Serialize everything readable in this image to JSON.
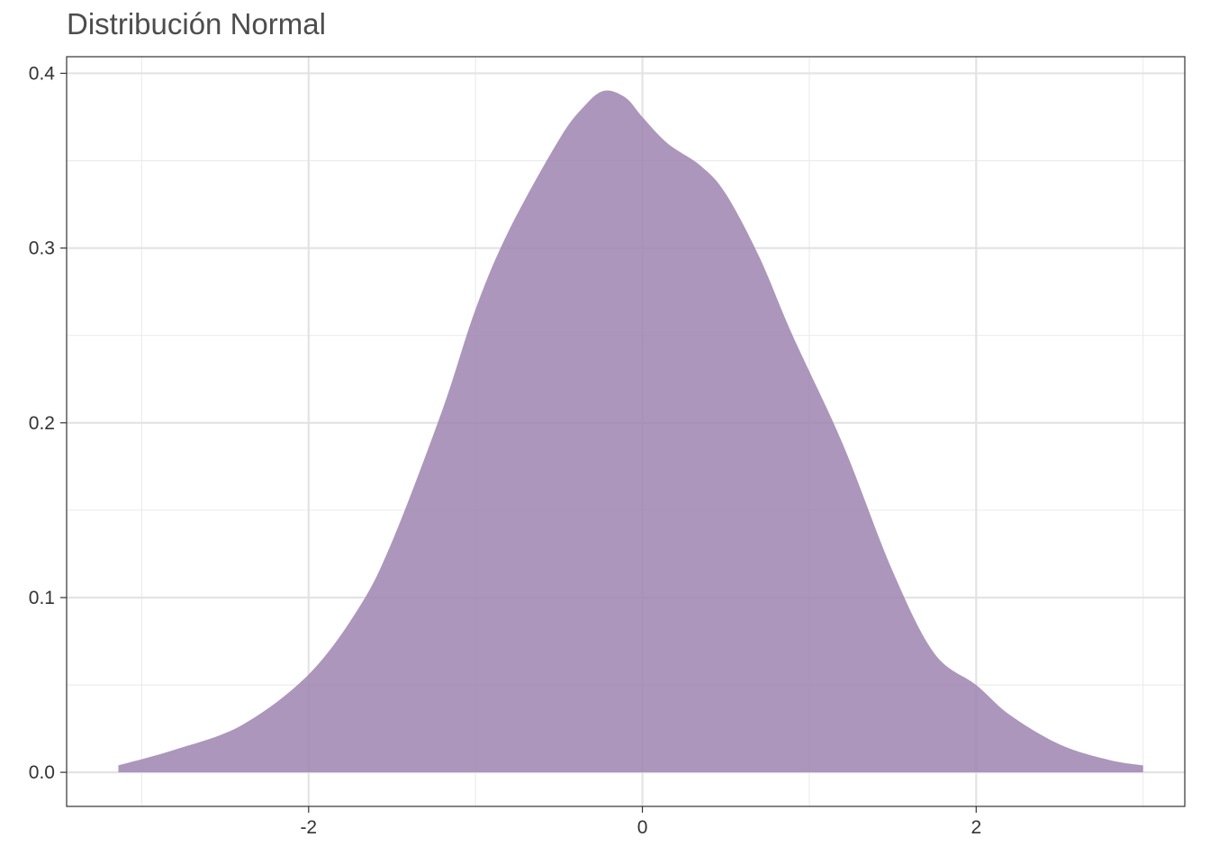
{
  "chart_data": {
    "type": "area",
    "title": "Distribución Normal",
    "xlabel": "",
    "ylabel": "",
    "xlim": [
      -3.45,
      3.25
    ],
    "ylim": [
      -0.0195,
      0.4095
    ],
    "x_ticks": [
      -2,
      0,
      2
    ],
    "x_tick_labels": [
      "-2",
      "0",
      "2"
    ],
    "y_ticks": [
      0.0,
      0.1,
      0.2,
      0.3,
      0.4
    ],
    "y_tick_labels": [
      "0.0",
      "0.1",
      "0.2",
      "0.3",
      "0.4"
    ],
    "grid": true,
    "legend": "none",
    "fill_color": "#9E84B0",
    "series": [
      {
        "x": [
          -3.14,
          -2.8,
          -2.4,
          -2.0,
          -1.7,
          -1.5,
          -1.2,
          -1.0,
          -0.8,
          -0.5,
          -0.35,
          -0.23,
          -0.1,
          0.0,
          0.15,
          0.35,
          0.5,
          0.7,
          0.9,
          1.2,
          1.5,
          1.75,
          2.0,
          2.2,
          2.5,
          2.8,
          3.0
        ],
        "y": [
          0.004,
          0.013,
          0.027,
          0.056,
          0.094,
          0.132,
          0.207,
          0.265,
          0.31,
          0.362,
          0.381,
          0.39,
          0.386,
          0.375,
          0.36,
          0.347,
          0.331,
          0.295,
          0.25,
          0.188,
          0.115,
          0.068,
          0.05,
          0.033,
          0.016,
          0.007,
          0.004
        ]
      }
    ]
  }
}
